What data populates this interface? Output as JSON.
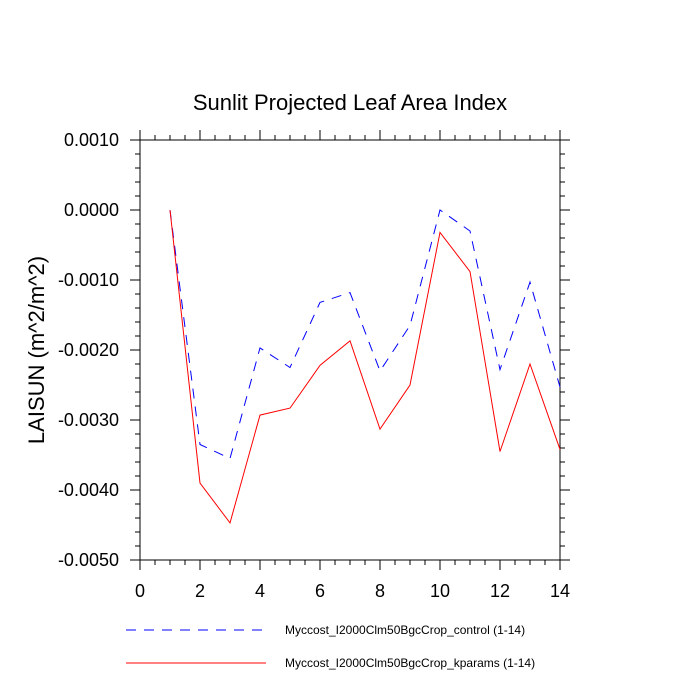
{
  "chart_data": {
    "type": "line",
    "title": "Sunlit Projected Leaf Area Index",
    "xlabel": "",
    "ylabel": "LAISUN  (m^2/m^2)",
    "xlim": [
      0,
      14
    ],
    "ylim": [
      -0.005,
      0.001
    ],
    "x_ticks": [
      0,
      2,
      4,
      6,
      8,
      10,
      12,
      14
    ],
    "x_tick_labels": [
      "0",
      "2",
      "4",
      "6",
      "8",
      "10",
      "12",
      "14"
    ],
    "y_ticks": [
      0.001,
      0.0,
      -0.001,
      -0.002,
      -0.003,
      -0.004,
      -0.005
    ],
    "y_tick_labels": [
      "0.0010",
      "0.0000",
      "-0.0010",
      "-0.0020",
      "-0.0030",
      "-0.0040",
      "-0.0050"
    ],
    "grid": false,
    "legend_position": "bottom",
    "x": [
      1,
      2,
      3,
      4,
      5,
      6,
      7,
      8,
      9,
      10,
      11,
      12,
      13,
      14
    ],
    "series": [
      {
        "name": "Myccost_I2000Clm50BgcCrop_control (1-14)",
        "color": "#0000ff",
        "dash": "dashed",
        "values": [
          0.0,
          -0.00335,
          -0.00355,
          -0.00197,
          -0.00225,
          -0.00132,
          -0.00118,
          -0.0023,
          -0.00165,
          0.0,
          -0.0003,
          -0.00228,
          -0.00103,
          -0.00253
        ]
      },
      {
        "name": "Myccost_I2000Clm50BgcCrop_kparams (1-14)",
        "color": "#ff0000",
        "dash": "solid",
        "values": [
          0.0,
          -0.0039,
          -0.00447,
          -0.00293,
          -0.00283,
          -0.00222,
          -0.00187,
          -0.00313,
          -0.0025,
          -0.00032,
          -0.00088,
          -0.00345,
          -0.0022,
          -0.00342
        ]
      }
    ]
  }
}
